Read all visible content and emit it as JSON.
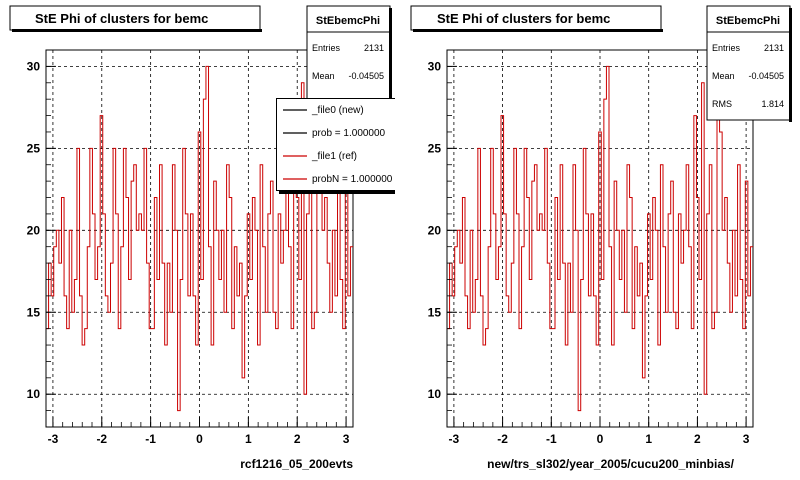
{
  "colors": {
    "histogram": "#cc0000",
    "new": "#000000",
    "ref": "#cc0000"
  },
  "chart_data": [
    {
      "type": "line",
      "title": "StE Phi of clusters for bemc",
      "xlabel": "rcf1216_05_200evts",
      "ylabel": "",
      "xlim": [
        -3.1416,
        3.1416
      ],
      "ylim": [
        8,
        31
      ],
      "grid": true,
      "xticks": [
        "-3",
        "-2",
        "-1",
        "0",
        "1",
        "2",
        "3"
      ],
      "yticks": [
        "10",
        "15",
        "20",
        "25",
        "30"
      ],
      "stats": {
        "name": "StEbemcPhi",
        "rows": [
          {
            "label": "Entries",
            "value": "2131"
          },
          {
            "label": "Mean",
            "value": "-0.04505"
          }
        ]
      },
      "legend": {
        "placement": "top-right",
        "entries": [
          "_file0 (new)",
          "prob = 1.000000",
          "_file1 (ref)",
          "probN = 1.000000"
        ]
      },
      "series": [
        {
          "values": [
            14,
            18,
            16,
            19,
            20,
            18,
            22,
            16,
            14,
            20,
            15,
            17,
            25,
            16,
            13,
            14,
            19,
            25,
            21,
            17,
            19,
            27,
            21,
            16,
            15,
            18,
            25,
            21,
            14,
            19,
            25,
            22,
            17,
            23,
            24,
            20,
            21,
            20,
            25,
            18,
            14,
            14,
            22,
            17,
            24,
            18,
            13,
            18,
            15,
            24,
            20,
            9,
            17,
            25,
            21,
            16,
            21,
            16,
            13,
            26,
            17,
            28,
            30,
            19,
            13,
            23,
            20,
            17,
            20,
            15,
            24,
            22,
            14,
            19,
            16,
            18,
            11,
            16,
            21,
            17,
            22,
            20,
            13,
            24,
            19,
            15,
            21,
            23,
            15,
            14,
            21,
            18,
            20,
            24,
            19,
            14,
            27,
            22,
            17,
            29,
            10,
            21,
            24,
            14,
            15,
            27,
            26,
            20,
            22,
            18,
            15,
            20,
            16,
            24,
            17,
            14,
            23,
            16,
            19
          ]
        }
      ]
    },
    {
      "type": "line",
      "title": "StE Phi of clusters for bemc",
      "xlabel": "new/trs_sl302/year_2005/cucu200_minbias/",
      "ylabel": "",
      "xlim": [
        -3.1416,
        3.1416
      ],
      "ylim": [
        8,
        31
      ],
      "grid": true,
      "xticks": [
        "-3",
        "-2",
        "-1",
        "0",
        "1",
        "2",
        "3"
      ],
      "yticks": [
        "10",
        "15",
        "20",
        "25",
        "30"
      ],
      "stats": {
        "name": "StEbemcPhi",
        "rows": [
          {
            "label": "Entries",
            "value": "2131"
          },
          {
            "label": "Mean",
            "value": "-0.04505"
          },
          {
            "label": "RMS",
            "value": "1.814"
          }
        ]
      },
      "series": [
        {
          "values": [
            14,
            18,
            16,
            19,
            20,
            18,
            22,
            16,
            14,
            20,
            15,
            17,
            25,
            16,
            13,
            14,
            19,
            25,
            21,
            17,
            19,
            27,
            21,
            16,
            15,
            18,
            25,
            21,
            14,
            19,
            25,
            22,
            17,
            23,
            24,
            20,
            21,
            20,
            25,
            18,
            14,
            14,
            22,
            17,
            24,
            18,
            13,
            18,
            15,
            24,
            20,
            9,
            17,
            25,
            21,
            16,
            21,
            16,
            13,
            26,
            17,
            28,
            30,
            19,
            13,
            23,
            20,
            17,
            20,
            15,
            24,
            22,
            14,
            19,
            16,
            18,
            11,
            16,
            21,
            17,
            22,
            20,
            13,
            24,
            19,
            15,
            21,
            23,
            15,
            14,
            21,
            18,
            20,
            24,
            19,
            14,
            27,
            22,
            17,
            29,
            10,
            21,
            24,
            14,
            15,
            27,
            26,
            20,
            22,
            18,
            15,
            20,
            16,
            24,
            17,
            14,
            23,
            16,
            19
          ]
        }
      ]
    }
  ]
}
